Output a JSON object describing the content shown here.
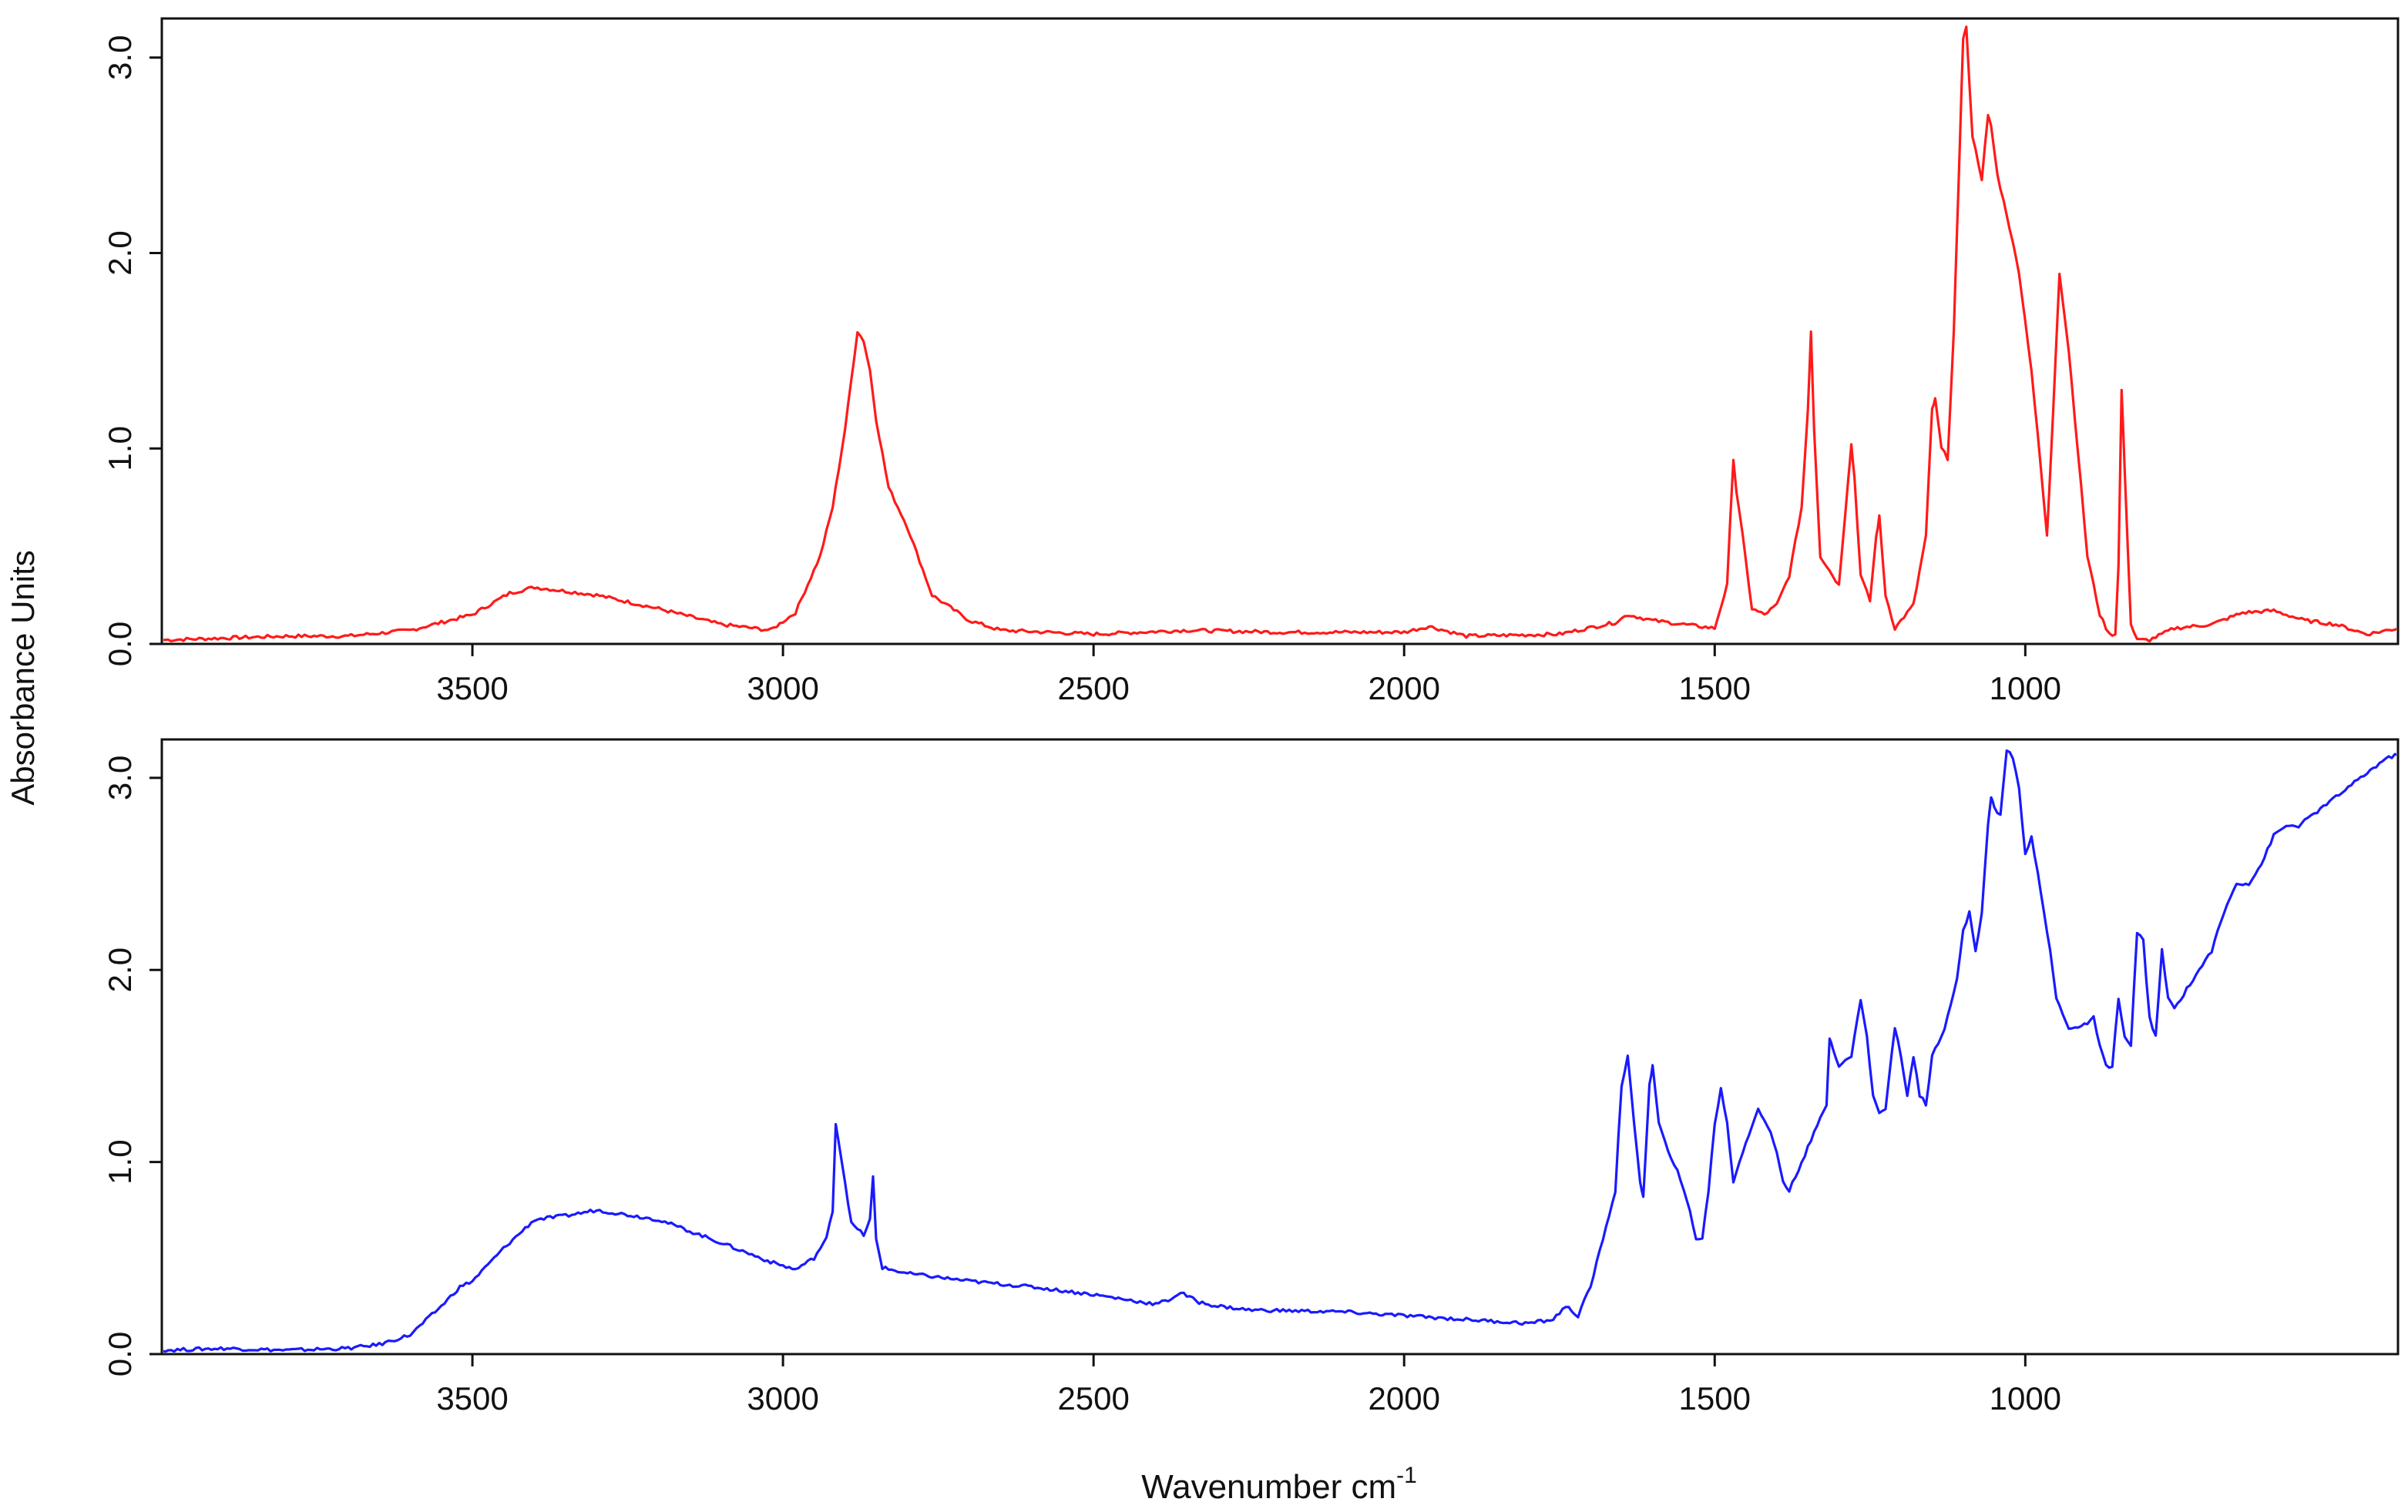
{
  "ylabel": "Absorbance Units",
  "xlabel_base": "Wavenumber cm",
  "xlabel_sup": "-1",
  "chart_data": [
    {
      "type": "line",
      "title": "",
      "xlabel": "Wavenumber cm-1",
      "ylabel": "Absorbance Units",
      "xlim": [
        4000,
        400
      ],
      "ylim": [
        0,
        3.2
      ],
      "x_reversed": true,
      "grid": false,
      "x_ticks": [
        3500,
        3000,
        2500,
        2000,
        1500,
        1000
      ],
      "x_tick_labels": [
        "3500",
        "3000",
        "2500",
        "2000",
        "1500",
        "1000"
      ],
      "y_ticks": [
        0,
        1,
        2,
        3
      ],
      "y_tick_labels": [
        "0.0",
        "1.0",
        "2.0",
        "3.0"
      ],
      "color": "#ff1a1a",
      "series": [
        {
          "x": [
            4000,
            3900,
            3800,
            3700,
            3600,
            3500,
            3440,
            3400,
            3300,
            3200,
            3100,
            3020,
            2980,
            2940,
            2920,
            2900,
            2890,
            2880,
            2870,
            2860,
            2850,
            2830,
            2800,
            2760,
            2700,
            2650,
            2500,
            2350,
            2200,
            2000,
            1960,
            1900,
            1750,
            1660,
            1640,
            1600,
            1500,
            1480,
            1470,
            1465,
            1455,
            1440,
            1420,
            1400,
            1380,
            1360,
            1350,
            1345,
            1340,
            1330,
            1300,
            1285,
            1280,
            1275,
            1265,
            1250,
            1240,
            1235,
            1225,
            1210,
            1180,
            1160,
            1150,
            1145,
            1135,
            1125,
            1115,
            1110,
            1105,
            1100,
            1095,
            1085,
            1070,
            1060,
            1055,
            1045,
            1030,
            1010,
            990,
            975,
            965,
            955,
            945,
            930,
            900,
            880,
            865,
            855,
            850,
            845,
            840,
            830,
            820,
            800,
            780,
            760,
            700,
            650,
            600,
            550,
            500,
            450,
            400
          ],
          "y": [
            0.02,
            0.03,
            0.04,
            0.04,
            0.07,
            0.15,
            0.26,
            0.29,
            0.25,
            0.18,
            0.1,
            0.07,
            0.16,
            0.45,
            0.7,
            1.1,
            1.35,
            1.6,
            1.55,
            1.4,
            1.15,
            0.8,
            0.6,
            0.25,
            0.12,
            0.07,
            0.05,
            0.07,
            0.06,
            0.06,
            0.09,
            0.04,
            0.05,
            0.11,
            0.15,
            0.12,
            0.08,
            0.3,
            0.95,
            0.78,
            0.55,
            0.18,
            0.15,
            0.2,
            0.35,
            0.7,
            1.2,
            1.6,
            1.1,
            0.45,
            0.3,
            0.85,
            1.02,
            0.85,
            0.35,
            0.22,
            0.55,
            0.65,
            0.25,
            0.08,
            0.2,
            0.55,
            1.2,
            1.25,
            1.0,
            0.95,
            1.6,
            2.1,
            2.6,
            3.1,
            3.15,
            2.6,
            2.38,
            2.7,
            2.65,
            2.4,
            2.2,
            1.9,
            1.4,
            0.9,
            0.55,
            1.2,
            1.9,
            1.5,
            0.45,
            0.15,
            0.05,
            0.05,
            0.4,
            1.3,
            0.9,
            0.1,
            0.02,
            0.02,
            0.05,
            0.08,
            0.1,
            0.16,
            0.17,
            0.12,
            0.1,
            0.05,
            0.08
          ]
        }
      ]
    },
    {
      "type": "line",
      "title": "",
      "xlabel": "Wavenumber cm-1",
      "ylabel": "Absorbance Units",
      "xlim": [
        4000,
        400
      ],
      "ylim": [
        0,
        3.2
      ],
      "x_reversed": true,
      "grid": false,
      "x_ticks": [
        3500,
        3000,
        2500,
        2000,
        1500,
        1000
      ],
      "x_tick_labels": [
        "3500",
        "3000",
        "2500",
        "2000",
        "1500",
        "1000"
      ],
      "y_ticks": [
        0,
        1,
        2,
        3
      ],
      "y_tick_labels": [
        "0.0",
        "1.0",
        "2.0",
        "3.0"
      ],
      "color": "#1a1aff",
      "series": [
        {
          "x": [
            4000,
            3900,
            3800,
            3700,
            3650,
            3600,
            3550,
            3520,
            3500,
            3450,
            3400,
            3350,
            3300,
            3200,
            3100,
            3020,
            2980,
            2950,
            2930,
            2920,
            2915,
            2905,
            2890,
            2870,
            2860,
            2855,
            2850,
            2840,
            2800,
            2700,
            2600,
            2500,
            2400,
            2380,
            2360,
            2330,
            2300,
            2250,
            2100,
            2000,
            1900,
            1800,
            1760,
            1740,
            1720,
            1700,
            1680,
            1660,
            1650,
            1640,
            1630,
            1620,
            1615,
            1605,
            1600,
            1590,
            1580,
            1560,
            1540,
            1530,
            1520,
            1510,
            1500,
            1490,
            1480,
            1470,
            1450,
            1430,
            1410,
            1400,
            1390,
            1380,
            1360,
            1340,
            1320,
            1315,
            1310,
            1300,
            1280,
            1265,
            1255,
            1245,
            1235,
            1225,
            1210,
            1200,
            1190,
            1180,
            1170,
            1160,
            1150,
            1130,
            1110,
            1100,
            1090,
            1080,
            1070,
            1060,
            1055,
            1050,
            1040,
            1030,
            1020,
            1010,
            1000,
            990,
            980,
            970,
            960,
            950,
            930,
            910,
            890,
            880,
            870,
            860,
            850,
            840,
            830,
            820,
            810,
            800,
            790,
            780,
            770,
            760,
            740,
            720,
            700,
            680,
            660,
            640,
            620,
            600,
            580,
            560,
            540,
            520,
            500,
            480,
            460,
            440,
            420,
            400
          ],
          "y": [
            0.02,
            0.03,
            0.02,
            0.03,
            0.05,
            0.1,
            0.25,
            0.35,
            0.38,
            0.55,
            0.7,
            0.72,
            0.75,
            0.7,
            0.58,
            0.48,
            0.44,
            0.5,
            0.6,
            0.75,
            1.2,
            1.0,
            0.68,
            0.62,
            0.7,
            0.92,
            0.6,
            0.45,
            0.42,
            0.38,
            0.35,
            0.31,
            0.26,
            0.28,
            0.32,
            0.27,
            0.25,
            0.23,
            0.22,
            0.2,
            0.18,
            0.16,
            0.18,
            0.25,
            0.2,
            0.35,
            0.6,
            0.85,
            1.4,
            1.55,
            1.2,
            0.9,
            0.82,
            1.4,
            1.5,
            1.2,
            1.1,
            0.95,
            0.75,
            0.6,
            0.6,
            0.85,
            1.2,
            1.38,
            1.2,
            0.9,
            1.1,
            1.28,
            1.15,
            1.05,
            0.9,
            0.85,
            1.0,
            1.15,
            1.3,
            1.65,
            1.6,
            1.5,
            1.55,
            1.85,
            1.65,
            1.35,
            1.25,
            1.28,
            1.7,
            1.55,
            1.35,
            1.55,
            1.35,
            1.3,
            1.55,
            1.7,
            1.95,
            2.2,
            2.3,
            2.1,
            2.3,
            2.75,
            2.9,
            2.85,
            2.8,
            3.15,
            3.1,
            2.95,
            2.6,
            2.7,
            2.5,
            2.3,
            2.1,
            1.85,
            1.7,
            1.7,
            1.75,
            1.6,
            1.5,
            1.5,
            1.85,
            1.65,
            1.6,
            2.2,
            2.15,
            1.75,
            1.65,
            2.1,
            1.85,
            1.8,
            1.9,
            2.0,
            2.1,
            2.3,
            2.45,
            2.45,
            2.55,
            2.7,
            2.75,
            2.75,
            2.8,
            2.85,
            2.9,
            2.95,
            3.0,
            3.05,
            3.1,
            3.12
          ]
        }
      ]
    }
  ]
}
